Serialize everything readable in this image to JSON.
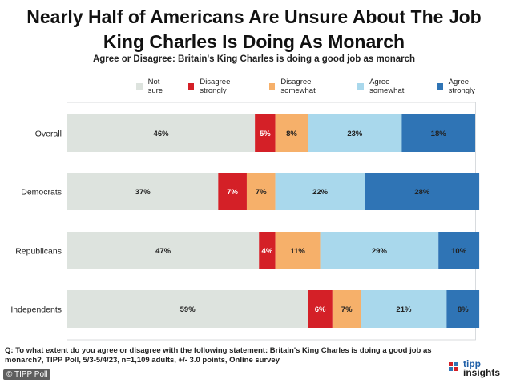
{
  "title_line1": "Nearly Half of Americans Are Unsure About The Job",
  "title_line2": "King Charles Is Doing As Monarch",
  "subtitle": "Agree or Disagree: Britain's King Charles is doing a good job as monarch",
  "question": "Q: To what extent do you agree or disagree with the following statement: Britain's King Charles is doing a good job as monarch?, TIPP Poll, 5/3-5/4/23, n=1,109 adults, +/- 3.0 points, Online survey",
  "credit": "© TIPP Poll",
  "brand": {
    "line1": "tipp",
    "line2": "insights"
  },
  "colors": {
    "not_sure": "#dde3de",
    "disagree_strongly": "#d42027",
    "disagree_somewhat": "#f6b06a",
    "agree_somewhat": "#a9d8ec",
    "agree_strongly": "#2f74b5",
    "background": "#ffffff"
  },
  "legend": [
    {
      "label": "Not sure",
      "color": "#dde3de"
    },
    {
      "label": "Disagree strongly",
      "color": "#d42027"
    },
    {
      "label": "Disagree somewhat",
      "color": "#f6b06a"
    },
    {
      "label": "Agree somewhat",
      "color": "#a9d8ec"
    },
    {
      "label": "Agree strongly",
      "color": "#2f74b5"
    }
  ],
  "chart_data": {
    "type": "bar",
    "orientation": "horizontal",
    "stacked": true,
    "title": "Nearly Half of Americans Are Unsure About The Job King Charles Is Doing As Monarch",
    "subtitle": "Agree or Disagree: Britain's King Charles is doing a good job as monarch",
    "xlabel": "",
    "ylabel": "",
    "xlim": [
      0,
      100
    ],
    "legend_position": "top",
    "categories": [
      "Overall",
      "Democrats",
      "Republicans",
      "Independents"
    ],
    "series": [
      {
        "name": "Not sure",
        "color": "#dde3de",
        "label_color": "#222222",
        "values": [
          46,
          37,
          47,
          59
        ]
      },
      {
        "name": "Disagree strongly",
        "color": "#d42027",
        "label_color": "#ffffff",
        "values": [
          5,
          7,
          4,
          6
        ]
      },
      {
        "name": "Disagree somewhat",
        "color": "#f6b06a",
        "label_color": "#222222",
        "values": [
          8,
          7,
          11,
          7
        ]
      },
      {
        "name": "Agree somewhat",
        "color": "#a9d8ec",
        "label_color": "#222222",
        "values": [
          23,
          22,
          29,
          21
        ]
      },
      {
        "name": "Agree strongly",
        "color": "#2f74b5",
        "label_color": "#222222",
        "values": [
          18,
          28,
          10,
          8
        ]
      }
    ]
  }
}
